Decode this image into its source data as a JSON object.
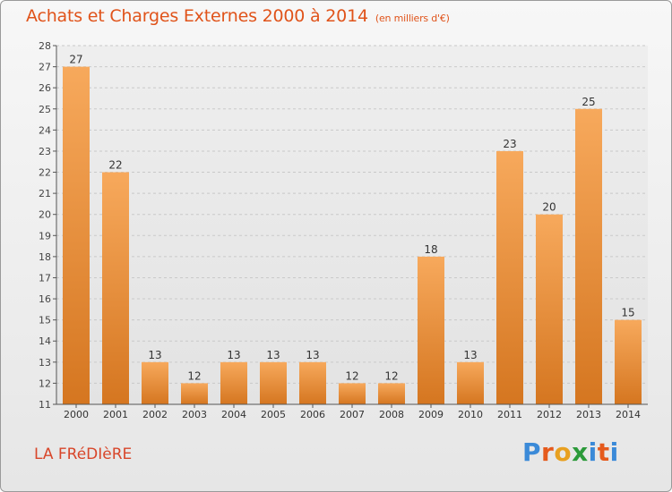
{
  "header": {
    "title": "Achats et Charges Externes 2000 à 2014",
    "subtitle": "(en milliers d'€)"
  },
  "footer": {
    "commune": "LA FRéDIèRE",
    "logo_letters": [
      "P",
      "r",
      "o",
      "x",
      "i",
      "t",
      "i"
    ]
  },
  "colors": {
    "title": "#e0531a",
    "bar_light": "#f6a55a",
    "bar_dark": "#d97a26",
    "commune": "#d8462a"
  },
  "chart_data": {
    "type": "bar",
    "title": "Achats et Charges Externes 2000 à 2014",
    "subtitle": "(en milliers d'€)",
    "categories": [
      "2000",
      "2001",
      "2002",
      "2003",
      "2004",
      "2005",
      "2006",
      "2007",
      "2008",
      "2009",
      "2010",
      "2011",
      "2012",
      "2013",
      "2014"
    ],
    "values": [
      27,
      22,
      13,
      12,
      13,
      13,
      13,
      12,
      12,
      18,
      13,
      23,
      20,
      25,
      15
    ],
    "ylim": [
      11,
      28
    ],
    "yticks": [
      11,
      12,
      13,
      14,
      15,
      16,
      17,
      18,
      19,
      20,
      21,
      22,
      23,
      24,
      25,
      26,
      27,
      28
    ],
    "xlabel": "",
    "ylabel": "",
    "grid": "horizontal dashed",
    "legend": "none"
  }
}
